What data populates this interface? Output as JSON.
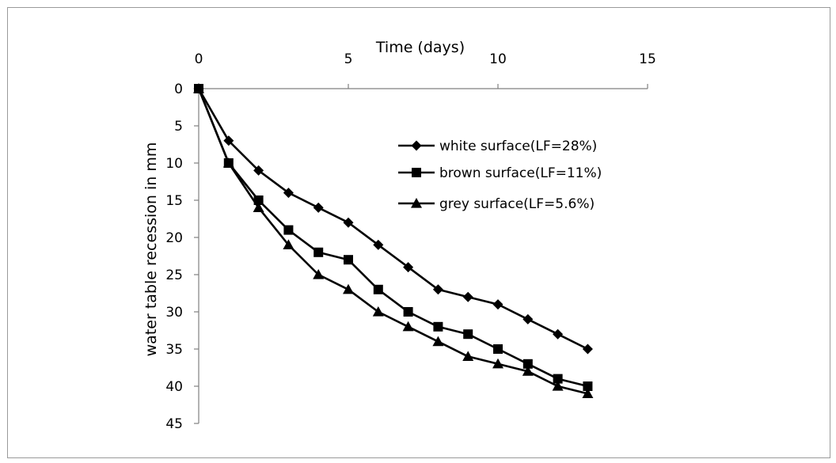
{
  "chart_data": {
    "type": "line",
    "x_axis": {
      "label": "Time (days)",
      "range": [
        0,
        15
      ],
      "ticks": [
        0,
        5,
        10,
        15
      ],
      "tick_labels": [
        "0",
        "5",
        "10",
        "15"
      ],
      "position": "top"
    },
    "y_axis": {
      "label": "water table recession in mm",
      "range": [
        0,
        45
      ],
      "ticks": [
        0,
        5,
        10,
        15,
        20,
        25,
        30,
        35,
        40,
        45
      ],
      "tick_labels": [
        "0",
        "5",
        "10",
        "15",
        "20",
        "25",
        "30",
        "35",
        "40",
        "45"
      ],
      "inverted": true
    },
    "grid": false,
    "legend_position": "top-right-inside",
    "series": [
      {
        "name": "white surface(LF=28%)",
        "marker": "diamond",
        "color": "#000000",
        "x": [
          0,
          1,
          2,
          3,
          4,
          5,
          6,
          7,
          8,
          9,
          10,
          11,
          12,
          13
        ],
        "y": [
          0,
          7,
          11,
          14,
          16,
          18,
          21,
          24,
          27,
          28,
          29,
          31,
          33,
          35
        ]
      },
      {
        "name": "brown surface(LF=11%)",
        "marker": "square",
        "color": "#000000",
        "x": [
          0,
          1,
          2,
          3,
          4,
          5,
          6,
          7,
          8,
          9,
          10,
          11,
          12,
          13
        ],
        "y": [
          0,
          10,
          15,
          19,
          22,
          23,
          27,
          30,
          32,
          33,
          35,
          37,
          39,
          40
        ]
      },
      {
        "name": "grey surface(LF=5.6%)",
        "marker": "triangle",
        "color": "#000000",
        "x": [
          0,
          1,
          2,
          3,
          4,
          5,
          6,
          7,
          8,
          9,
          10,
          11,
          12,
          13
        ],
        "y": [
          0,
          10,
          16,
          21,
          25,
          27,
          30,
          32,
          34,
          36,
          37,
          38,
          40,
          41
        ]
      }
    ]
  }
}
